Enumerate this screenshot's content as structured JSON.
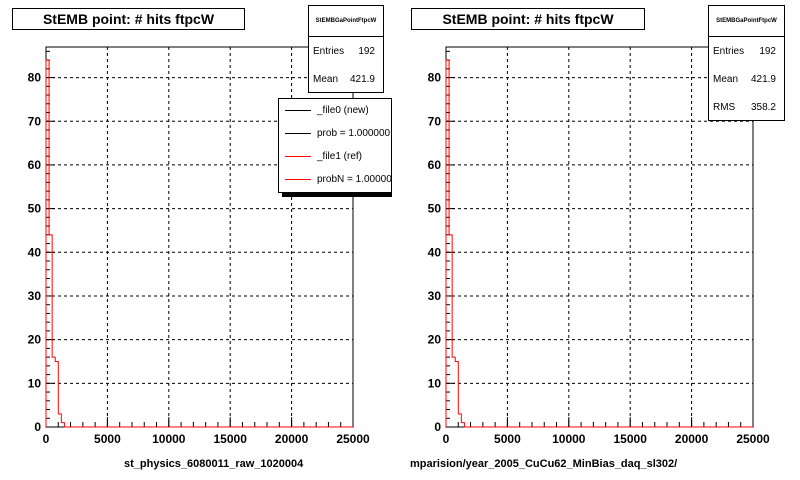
{
  "chart_data": [
    {
      "type": "histogram",
      "title": "StEMB point: # hits ftpcW",
      "xlabel": "st_physics_6080011_raw_1020004",
      "xlim": [
        0,
        25000
      ],
      "ylim": [
        0,
        87
      ],
      "x_ticks": [
        "0",
        "5000",
        "10000",
        "15000",
        "20000",
        "25000"
      ],
      "y_ticks": [
        "0",
        "10",
        "20",
        "30",
        "40",
        "50",
        "60",
        "70",
        "80"
      ],
      "grid": true,
      "stats": {
        "name": "StEMBGaPointFtpcW",
        "rows": [
          {
            "label": "Entries",
            "value": "192"
          },
          {
            "label": "Mean",
            "value": "421.9"
          }
        ]
      },
      "legend": {
        "placement": "top-right",
        "entries": [
          {
            "label": "_file0 (new)",
            "color": "#000000"
          },
          {
            "label": "prob = 1.000000",
            "color": "#000000"
          },
          {
            "label": "_file1 (ref)",
            "color": "#ff0000"
          },
          {
            "label": "probN = 1.000000",
            "color": "#ff0000"
          }
        ]
      },
      "series": [
        {
          "color": "#ff0000",
          "bin_width": 250,
          "values": [
            84,
            44,
            16,
            15,
            3,
            1,
            0
          ]
        }
      ]
    },
    {
      "type": "histogram",
      "title": "StEMB point: # hits ftpcW",
      "xlabel": "mparision/year_2005_CuCu62_MinBias_daq_sl302/",
      "xlim": [
        0,
        25000
      ],
      "ylim": [
        0,
        87
      ],
      "x_ticks": [
        "0",
        "5000",
        "10000",
        "15000",
        "20000",
        "25000"
      ],
      "y_ticks": [
        "0",
        "10",
        "20",
        "30",
        "40",
        "50",
        "60",
        "70",
        "80"
      ],
      "grid": true,
      "stats": {
        "name": "StEMBGaPointFtpcW",
        "rows": [
          {
            "label": "Entries",
            "value": "192"
          },
          {
            "label": "Mean",
            "value": "421.9"
          },
          {
            "label": "RMS",
            "value": "358.2"
          }
        ]
      },
      "series": [
        {
          "color": "#ff0000",
          "bin_width": 250,
          "values": [
            84,
            44,
            16,
            15,
            3,
            1,
            0
          ]
        }
      ]
    }
  ]
}
